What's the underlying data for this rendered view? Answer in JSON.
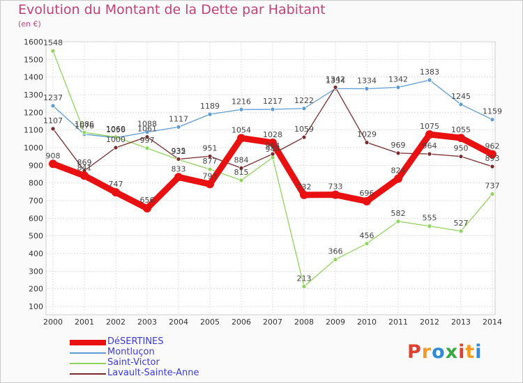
{
  "header": {
    "title": "Evolution du Montant de la Dette par Habitant",
    "unit": "(en €)"
  },
  "logo": {
    "text": "Proxiti",
    "colors": [
      "#e0412f",
      "#f59a22",
      "#2e8bd8",
      "#3aa843",
      "#e0412f",
      "#f59a22",
      "#2e8bd8"
    ]
  },
  "colors": {
    "title": "#c2407a",
    "legend_text": "#3a3ad8",
    "grid": "#dddddd"
  },
  "chart_data": {
    "type": "line",
    "title": "Evolution du Montant de la Dette par Habitant",
    "subtitle": "(en €)",
    "xlabel": "",
    "ylabel": "",
    "x": [
      "2000",
      "2001",
      "2002",
      "2003",
      "2004",
      "2005",
      "2006",
      "2007",
      "2008",
      "2009",
      "2010",
      "2011",
      "2012",
      "2013",
      "2014"
    ],
    "y_ticks": [
      100,
      200,
      300,
      400,
      500,
      600,
      700,
      800,
      900,
      1000,
      1100,
      1200,
      1300,
      1400,
      1500,
      1600
    ],
    "ylim": [
      100,
      1600
    ],
    "grid": true,
    "legend": "bottom-left",
    "series": [
      {
        "name": "DéSERTINES",
        "color": "#e81010",
        "bold": true,
        "values": [
          908,
          841,
          747,
          656,
          833,
          793,
          1054,
          1028,
          732,
          733,
          696,
          824,
          1075,
          1055,
          962
        ]
      },
      {
        "name": "Montluçon",
        "color": "#5b9bd5",
        "bold": false,
        "values": [
          1237,
          1076,
          1056,
          1088,
          1117,
          1189,
          1216,
          1217,
          1222,
          1334,
          1334,
          1342,
          1383,
          1245,
          1159
        ]
      },
      {
        "name": "Saint-Victor",
        "color": "#8fd45a",
        "bold": false,
        "values": [
          1548,
          1086,
          1060,
          997,
          932,
          877,
          815,
          944,
          213,
          366,
          456,
          582,
          555,
          527,
          737
        ]
      },
      {
        "name": "Lavault-Sainte-Anne",
        "color": "#7a2a2a",
        "bold": false,
        "values": [
          1107,
          869,
          1000,
          1061,
          935,
          951,
          884,
          964,
          1059,
          1342,
          1029,
          969,
          964,
          950,
          893
        ]
      }
    ]
  }
}
